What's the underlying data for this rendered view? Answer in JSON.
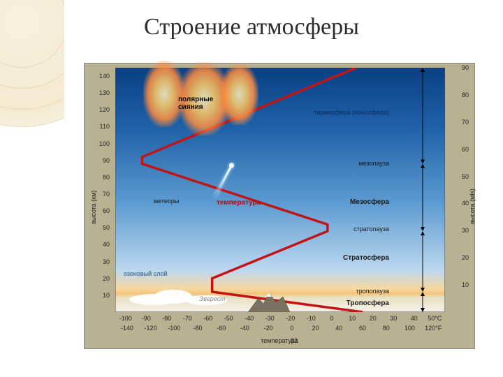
{
  "title": "Строение атмосферы",
  "axes": {
    "y_left_label": "высота (км)",
    "y_right_label": "высота (мls)",
    "y_left_ticks": [
      140,
      130,
      120,
      110,
      100,
      90,
      80,
      70,
      60,
      50,
      40,
      30,
      20,
      10
    ],
    "y_right_ticks": [
      90,
      80,
      70,
      60,
      50,
      40,
      30,
      20,
      10
    ],
    "y_left_max": 145,
    "y_left_min": 0,
    "y_right_max": 90,
    "y_right_min": 0,
    "x_label": "температура",
    "x_ticks_c": [
      -100,
      -90,
      -80,
      -70,
      -60,
      -50,
      -40,
      -30,
      -20,
      -10,
      0,
      10,
      20,
      30,
      40,
      "50°C"
    ],
    "x_ticks_f": [
      -140,
      -120,
      -100,
      -80,
      -60,
      -40,
      -20,
      0,
      20,
      40,
      60,
      80,
      100,
      "120°F"
    ],
    "x_min_c": -105,
    "x_max_c": 55
  },
  "temperature_curve_c_km": [
    [
      15,
      0
    ],
    [
      -58,
      12
    ],
    [
      -58,
      20
    ],
    [
      -2,
      48
    ],
    [
      -2,
      52
    ],
    [
      -92,
      88
    ],
    [
      -92,
      92
    ],
    [
      12,
      145
    ]
  ],
  "curve_color": "#c21414",
  "curve_width": 3.5,
  "sky_gradient": {
    "stops": [
      [
        0,
        "#0a3f84"
      ],
      [
        0.25,
        "#1f62a8"
      ],
      [
        0.55,
        "#5b9ad1"
      ],
      [
        0.83,
        "#bcd8ef"
      ],
      [
        0.905,
        "#f8d8a0"
      ],
      [
        0.925,
        "#f4c37a"
      ],
      [
        0.94,
        "#e9e1c3"
      ],
      [
        1.0,
        "#f5f2eb"
      ]
    ]
  },
  "layers": [
    {
      "name": "Тропосфера",
      "top_km": 12,
      "label_km": 5,
      "arrow": true,
      "bold": true
    },
    {
      "name": "тропопауза",
      "label_km": 12,
      "arrow": false,
      "bold": false
    },
    {
      "name": "Стратосфера",
      "top_km": 48,
      "label_km": 32,
      "arrow": true,
      "bold": true
    },
    {
      "name": "стратопауза",
      "label_km": 49,
      "arrow": false,
      "bold": false
    },
    {
      "name": "Мезосфера",
      "top_km": 88,
      "label_km": 65,
      "arrow": true,
      "bold": true
    },
    {
      "name": "мезопауза",
      "label_km": 88,
      "arrow": false,
      "bold": false
    },
    {
      "name": "термосфера (ионосфера)",
      "top_km": 145,
      "label_km": 118,
      "arrow": true,
      "bold": false,
      "color": "#0b2a66"
    }
  ],
  "annotations": {
    "aurora": "полярные\nсияния",
    "meteors": "метеоры",
    "temperature": "температура",
    "ozone": "озоновый слой",
    "everest": "Эверест"
  },
  "page_number": "32",
  "plot_bg": "#b9b292",
  "colors": {
    "ozone": "#e78b2a",
    "ozone2": "#f0e08a",
    "title": "#2b2b2b"
  }
}
